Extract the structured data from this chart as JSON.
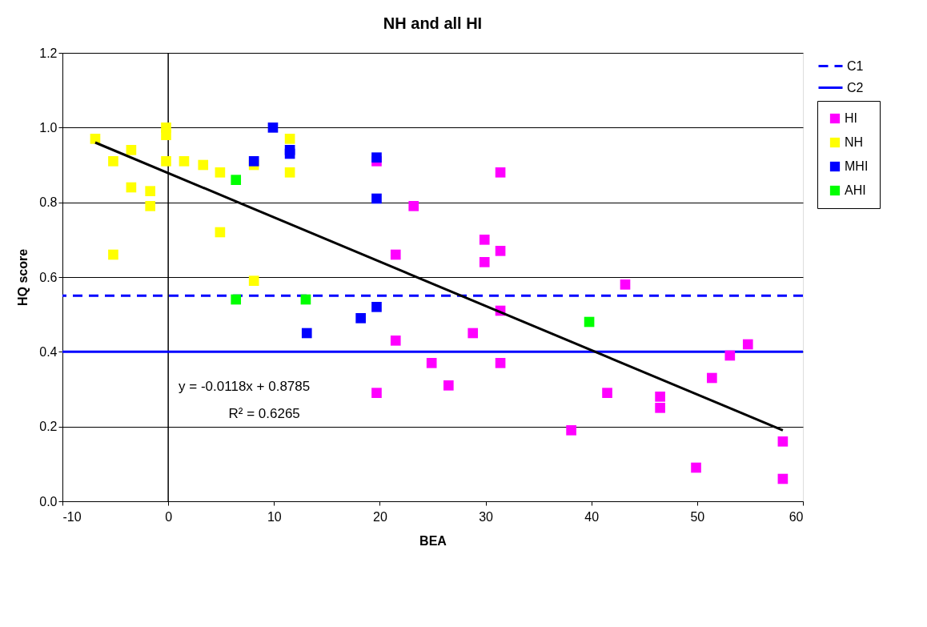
{
  "chart_data": {
    "type": "scatter",
    "title": "NH and all HI",
    "xlabel": "BEA",
    "ylabel": "HQ score",
    "xlim": [
      -10,
      60
    ],
    "xticks": [
      -10,
      0,
      10,
      20,
      30,
      40,
      50,
      60
    ],
    "ylim": [
      0,
      1.2
    ],
    "yticks": [
      {
        "value": 0,
        "label": "0.0"
      },
      {
        "value": 0.2,
        "label": "0.2"
      },
      {
        "value": 0.4,
        "label": "0.4"
      },
      {
        "value": 0.6,
        "label": "0.6"
      },
      {
        "value": 0.8,
        "label": "0.8"
      },
      {
        "value": 1.0,
        "label": "1.0"
      },
      {
        "value": 1.2,
        "label": "1.2"
      }
    ],
    "grid": "y",
    "legend": "right",
    "marker": "square",
    "series": [
      {
        "name": "HI",
        "color": "#ff00ff",
        "x": [
          19.7,
          23.2,
          31.4,
          21.5,
          29.9,
          29.9,
          31.4,
          31.4,
          28.8,
          21.5,
          24.9,
          31.4,
          26.5,
          19.7,
          43.2,
          54.8,
          53.1,
          51.4,
          41.5,
          46.5,
          46.5,
          38.1,
          58.1,
          49.9,
          58.1
        ],
        "values": [
          0.91,
          0.79,
          0.88,
          0.66,
          0.7,
          0.64,
          0.67,
          0.51,
          0.45,
          0.43,
          0.37,
          0.37,
          0.31,
          0.29,
          0.58,
          0.42,
          0.39,
          0.33,
          0.29,
          0.28,
          0.25,
          0.19,
          0.16,
          0.09,
          0.06
        ]
      },
      {
        "name": "NH",
        "color": "#ffff00",
        "x": [
          -6.9,
          -5.2,
          -3.5,
          -3.5,
          -1.7,
          -1.7,
          -5.2,
          -0.2,
          -0.2,
          -0.2,
          1.5,
          3.3,
          4.9,
          4.9,
          8.1,
          8.1,
          11.5,
          11.5
        ],
        "values": [
          0.97,
          0.91,
          0.94,
          0.84,
          0.83,
          0.79,
          0.66,
          1.0,
          0.98,
          0.91,
          0.91,
          0.9,
          0.88,
          0.72,
          0.9,
          0.59,
          0.97,
          0.88
        ]
      },
      {
        "name": "MHI",
        "color": "#0000ff",
        "x": [
          9.9,
          8.1,
          11.5,
          11.5,
          13.1,
          19.7,
          19.7,
          19.7,
          18.2
        ],
        "values": [
          1.0,
          0.91,
          0.94,
          0.93,
          0.45,
          0.92,
          0.81,
          0.52,
          0.49
        ]
      },
      {
        "name": "AHI",
        "color": "#00ff00",
        "x": [
          6.4,
          6.4,
          13.0,
          39.8
        ],
        "values": [
          0.86,
          0.54,
          0.54,
          0.48
        ]
      },
      {
        "type": "line",
        "color": "#000000",
        "marker": "none",
        "line_style": "solid",
        "x": [
          -6.9,
          58.1
        ],
        "values": [
          0.96,
          0.19
        ]
      }
    ],
    "ref_lines": [
      {
        "axis": "y",
        "value": 0.55,
        "label": "C1",
        "color": "#0000ff",
        "line_style": "dashed"
      },
      {
        "axis": "y",
        "value": 0.4,
        "label": "C2",
        "color": "#0000ff",
        "line_style": "solid"
      },
      {
        "axis": "x",
        "value": 0,
        "color": "#000000",
        "line_style": "solid"
      }
    ],
    "annotations": [
      "y = -0.0118x + 0.8785",
      "R² = 0.6265"
    ]
  }
}
